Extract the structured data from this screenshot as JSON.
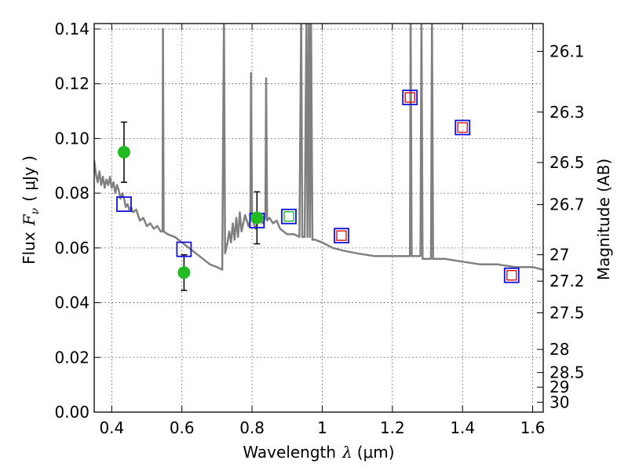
{
  "chart_data": {
    "type": "scatter",
    "title": "",
    "xlabel_main": "Wavelength",
    "xlabel_symbol": "λ",
    "xlabel_unit": "(μm)",
    "ylabel_main": "Flux",
    "ylabel_symbol": "F",
    "ylabel_symbol_sub": "ν",
    "ylabel_unit": "( μJy )",
    "y2label": "Magnitude (AB)",
    "xlim": [
      0.35,
      1.63
    ],
    "ylim": [
      0.0,
      0.142
    ],
    "grid": true,
    "x_ticks": [
      0.4,
      0.6,
      0.8,
      1.0,
      1.2,
      1.4,
      1.6
    ],
    "x_tick_labels": [
      "0.4",
      "0.6",
      "0.8",
      "1",
      "1.2",
      "1.4",
      "1.6"
    ],
    "y_ticks": [
      0.0,
      0.02,
      0.04,
      0.06,
      0.08,
      0.1,
      0.12,
      0.14
    ],
    "y_tick_labels": [
      "0.00",
      "0.02",
      "0.04",
      "0.06",
      "0.08",
      "0.10",
      "0.12",
      "0.14"
    ],
    "mag_ticks": [
      {
        "mag": 26.1,
        "label": "26.1"
      },
      {
        "mag": 26.3,
        "label": "26.3"
      },
      {
        "mag": 26.5,
        "label": "26.5"
      },
      {
        "mag": 26.7,
        "label": "26.7"
      },
      {
        "mag": 27.0,
        "label": "27"
      },
      {
        "mag": 27.2,
        "label": "27.2"
      },
      {
        "mag": 27.5,
        "label": "27.5"
      },
      {
        "mag": 28.0,
        "label": "28"
      },
      {
        "mag": 28.5,
        "label": "28.5"
      },
      {
        "mag": 29.0,
        "label": "29"
      },
      {
        "mag": 30.0,
        "label": "30"
      }
    ],
    "observed": {
      "name": "Observed photometry",
      "color": "#22bb22",
      "points": [
        {
          "x": 0.435,
          "y": 0.095,
          "err": 0.011
        },
        {
          "x": 0.606,
          "y": 0.051,
          "err": 0.0065
        },
        {
          "x": 0.814,
          "y": 0.071,
          "err": 0.0095
        }
      ]
    },
    "model_blue": {
      "name": "Model photometry",
      "color": "#1010dd",
      "points": [
        {
          "x": 0.435,
          "y": 0.076
        },
        {
          "x": 0.606,
          "y": 0.0595
        },
        {
          "x": 0.814,
          "y": 0.07
        },
        {
          "x": 0.905,
          "y": 0.0715
        },
        {
          "x": 1.055,
          "y": 0.0645
        },
        {
          "x": 1.25,
          "y": 0.115
        },
        {
          "x": 1.4,
          "y": 0.104
        },
        {
          "x": 1.54,
          "y": 0.05
        }
      ]
    },
    "inner_boxes": [
      {
        "x": 0.905,
        "y": 0.0715,
        "color": "#22bb22"
      },
      {
        "x": 1.055,
        "y": 0.0645,
        "color": "#dd1111"
      },
      {
        "x": 1.25,
        "y": 0.115,
        "color": "#dd1111"
      },
      {
        "x": 1.4,
        "y": 0.104,
        "color": "#dd1111"
      },
      {
        "x": 1.54,
        "y": 0.05,
        "color": "#dd1111"
      }
    ],
    "spectrum": {
      "name": "Model spectrum",
      "color": "#808080",
      "points": [
        [
          0.35,
          0.092
        ],
        [
          0.355,
          0.087
        ],
        [
          0.36,
          0.084
        ],
        [
          0.365,
          0.088
        ],
        [
          0.37,
          0.083
        ],
        [
          0.375,
          0.086
        ],
        [
          0.38,
          0.082
        ],
        [
          0.385,
          0.085
        ],
        [
          0.39,
          0.083
        ],
        [
          0.395,
          0.086
        ],
        [
          0.4,
          0.082
        ],
        [
          0.405,
          0.084
        ],
        [
          0.41,
          0.08
        ],
        [
          0.415,
          0.083
        ],
        [
          0.42,
          0.081
        ],
        [
          0.425,
          0.078
        ],
        [
          0.43,
          0.08
        ],
        [
          0.435,
          0.078
        ],
        [
          0.44,
          0.075
        ],
        [
          0.445,
          0.076
        ],
        [
          0.45,
          0.074
        ],
        [
          0.455,
          0.075
        ],
        [
          0.46,
          0.073
        ],
        [
          0.47,
          0.074
        ],
        [
          0.48,
          0.07
        ],
        [
          0.49,
          0.071
        ],
        [
          0.5,
          0.068
        ],
        [
          0.51,
          0.069
        ],
        [
          0.52,
          0.067
        ],
        [
          0.53,
          0.068
        ],
        [
          0.54,
          0.066
        ],
        [
          0.545,
          0.066
        ],
        [
          0.546,
          0.14
        ],
        [
          0.548,
          0.066
        ],
        [
          0.56,
          0.065
        ],
        [
          0.58,
          0.064
        ],
        [
          0.6,
          0.062
        ],
        [
          0.62,
          0.06
        ],
        [
          0.65,
          0.057
        ],
        [
          0.68,
          0.054
        ],
        [
          0.7,
          0.053
        ],
        [
          0.715,
          0.052
        ],
        [
          0.72,
          0.145
        ],
        [
          0.723,
          0.058
        ],
        [
          0.73,
          0.062
        ],
        [
          0.735,
          0.066
        ],
        [
          0.74,
          0.062
        ],
        [
          0.745,
          0.069
        ],
        [
          0.75,
          0.063
        ],
        [
          0.755,
          0.071
        ],
        [
          0.76,
          0.064
        ],
        [
          0.765,
          0.073
        ],
        [
          0.77,
          0.066
        ],
        [
          0.78,
          0.072
        ],
        [
          0.79,
          0.068
        ],
        [
          0.795,
          0.07
        ],
        [
          0.797,
          0.124
        ],
        [
          0.8,
          0.071
        ],
        [
          0.81,
          0.067
        ],
        [
          0.82,
          0.071
        ],
        [
          0.83,
          0.069
        ],
        [
          0.838,
          0.071
        ],
        [
          0.84,
          0.122
        ],
        [
          0.843,
          0.07
        ],
        [
          0.85,
          0.071
        ],
        [
          0.86,
          0.069
        ],
        [
          0.87,
          0.07
        ],
        [
          0.88,
          0.067
        ],
        [
          0.89,
          0.066
        ],
        [
          0.9,
          0.065
        ],
        [
          0.92,
          0.065
        ],
        [
          0.935,
          0.064
        ],
        [
          0.94,
          0.145
        ],
        [
          0.943,
          0.064
        ],
        [
          0.95,
          0.064
        ],
        [
          0.955,
          0.145
        ],
        [
          0.958,
          0.064
        ],
        [
          0.962,
          0.145
        ],
        [
          0.965,
          0.064
        ],
        [
          0.968,
          0.145
        ],
        [
          0.972,
          0.063
        ],
        [
          0.98,
          0.063
        ],
        [
          1.0,
          0.062
        ],
        [
          1.03,
          0.06
        ],
        [
          1.06,
          0.059
        ],
        [
          1.1,
          0.058
        ],
        [
          1.15,
          0.057
        ],
        [
          1.2,
          0.057
        ],
        [
          1.25,
          0.057
        ],
        [
          1.252,
          0.145
        ],
        [
          1.255,
          0.057
        ],
        [
          1.28,
          0.057
        ],
        [
          1.283,
          0.145
        ],
        [
          1.286,
          0.056
        ],
        [
          1.31,
          0.056
        ],
        [
          1.313,
          0.145
        ],
        [
          1.316,
          0.056
        ],
        [
          1.35,
          0.056
        ],
        [
          1.4,
          0.055
        ],
        [
          1.45,
          0.054
        ],
        [
          1.5,
          0.054
        ],
        [
          1.55,
          0.053
        ],
        [
          1.6,
          0.053
        ],
        [
          1.63,
          0.052
        ]
      ]
    }
  }
}
